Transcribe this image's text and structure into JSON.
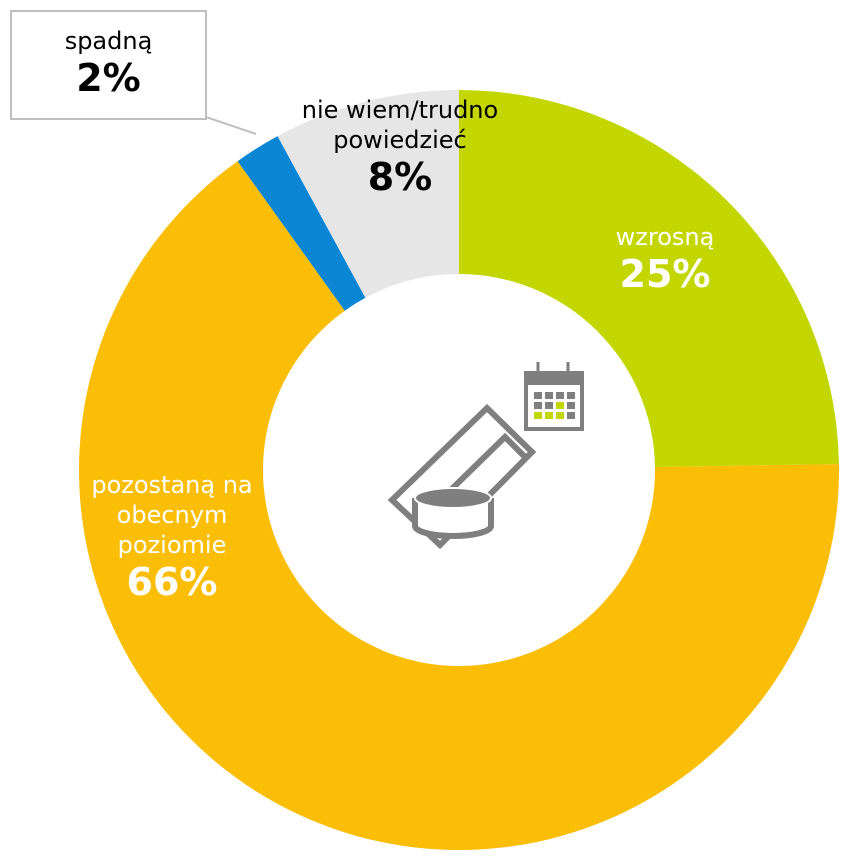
{
  "chart_data": {
    "type": "donut",
    "categories": [
      "wzrosną",
      "pozostaną na obecnym poziomie",
      "spadną",
      "nie wiem/trudno powiedzieć"
    ],
    "values": [
      25,
      66,
      2,
      8
    ],
    "value_labels": [
      "25%",
      "66%",
      "2%",
      "8%"
    ],
    "colors": [
      "#c3d600",
      "#fbbe07",
      "#0a86d4",
      "#e6e6e6"
    ]
  }
}
